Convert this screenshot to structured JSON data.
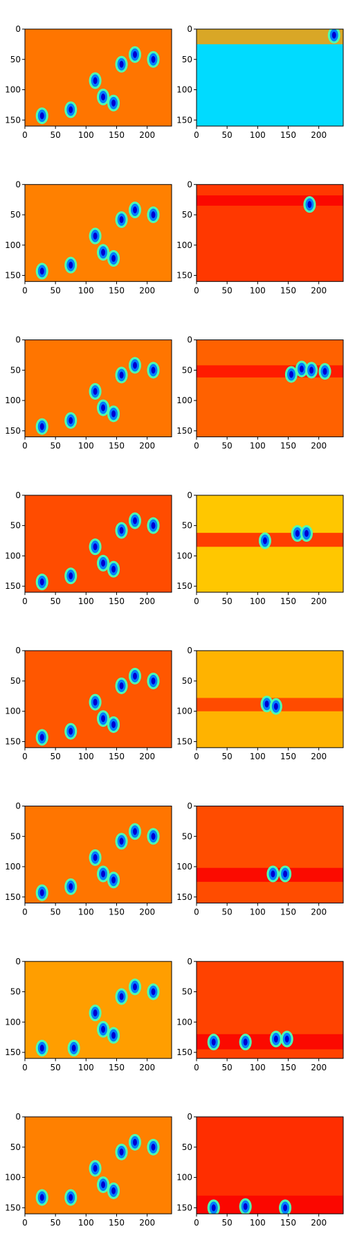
{
  "chart_data": {
    "type": "heatmap",
    "colormap": "jet",
    "layout": {
      "rows": 8,
      "cols": 2
    },
    "xlim": [
      0,
      240
    ],
    "ylim": [
      160,
      0
    ],
    "xticks": [
      0,
      50,
      100,
      150,
      200
    ],
    "yticks": [
      0,
      50,
      100,
      150
    ],
    "grid": false,
    "legend": "none",
    "colors": {
      "warm_background": "#FFA500",
      "deep_blue": "#0000B0",
      "cyan": "#00C8FF",
      "red_orange": "#FF3A00"
    },
    "rows": [
      {
        "left": {
          "background": 0.76,
          "blobs": [
            [
              28,
              143
            ],
            [
              75,
              133
            ],
            [
              115,
              85
            ],
            [
              128,
              112
            ],
            [
              145,
              122
            ],
            [
              158,
              58
            ],
            [
              180,
              42
            ],
            [
              210,
              50
            ]
          ]
        },
        "right": {
          "background": 0.34,
          "band": {
            "y0": 0,
            "y1": 25,
            "value": 0.72
          },
          "blobs": [
            [
              225,
              10
            ]
          ]
        }
      },
      {
        "left": {
          "background": 0.75,
          "blobs": [
            [
              28,
              143
            ],
            [
              75,
              133
            ],
            [
              115,
              85
            ],
            [
              128,
              112
            ],
            [
              145,
              122
            ],
            [
              158,
              58
            ],
            [
              180,
              42
            ],
            [
              210,
              50
            ]
          ]
        },
        "right": {
          "background": 0.82,
          "band": {
            "y0": 18,
            "y1": 35,
            "value": 0.88
          },
          "blobs": [
            [
              185,
              33
            ]
          ]
        }
      },
      {
        "left": {
          "background": 0.76,
          "blobs": [
            [
              28,
              143
            ],
            [
              75,
              133
            ],
            [
              115,
              85
            ],
            [
              128,
              112
            ],
            [
              145,
              122
            ],
            [
              158,
              58
            ],
            [
              180,
              42
            ],
            [
              210,
              50
            ]
          ]
        },
        "right": {
          "background": 0.78,
          "band": {
            "y0": 42,
            "y1": 62,
            "value": 0.86
          },
          "blobs": [
            [
              155,
              57
            ],
            [
              172,
              48
            ],
            [
              188,
              50
            ],
            [
              210,
              52
            ]
          ]
        }
      },
      {
        "left": {
          "background": 0.8,
          "blobs": [
            [
              28,
              143
            ],
            [
              75,
              133
            ],
            [
              115,
              85
            ],
            [
              128,
              112
            ],
            [
              145,
              122
            ],
            [
              158,
              58
            ],
            [
              180,
              42
            ],
            [
              210,
              50
            ]
          ]
        },
        "right": {
          "background": 0.68,
          "band": {
            "y0": 62,
            "y1": 85,
            "value": 0.84
          },
          "blobs": [
            [
              112,
              75
            ],
            [
              165,
              63
            ],
            [
              180,
              63
            ]
          ]
        }
      },
      {
        "left": {
          "background": 0.79,
          "blobs": [
            [
              28,
              143
            ],
            [
              75,
              133
            ],
            [
              115,
              85
            ],
            [
              128,
              112
            ],
            [
              145,
              122
            ],
            [
              158,
              58
            ],
            [
              180,
              42
            ],
            [
              210,
              50
            ]
          ]
        },
        "right": {
          "background": 0.7,
          "band": {
            "y0": 78,
            "y1": 100,
            "value": 0.82
          },
          "blobs": [
            [
              115,
              88
            ],
            [
              130,
              92
            ]
          ]
        }
      },
      {
        "left": {
          "background": 0.76,
          "blobs": [
            [
              28,
              143
            ],
            [
              75,
              133
            ],
            [
              115,
              85
            ],
            [
              128,
              112
            ],
            [
              145,
              122
            ],
            [
              158,
              58
            ],
            [
              180,
              42
            ],
            [
              210,
              50
            ]
          ]
        },
        "right": {
          "background": 0.8,
          "band": {
            "y0": 102,
            "y1": 125,
            "value": 0.88
          },
          "blobs": [
            [
              125,
              112
            ],
            [
              145,
              112
            ]
          ]
        }
      },
      {
        "left": {
          "background": 0.72,
          "blobs": [
            [
              28,
              143
            ],
            [
              80,
              143
            ],
            [
              115,
              85
            ],
            [
              128,
              112
            ],
            [
              145,
              122
            ],
            [
              158,
              58
            ],
            [
              180,
              42
            ],
            [
              210,
              50
            ]
          ]
        },
        "right": {
          "background": 0.81,
          "band": {
            "y0": 120,
            "y1": 145,
            "value": 0.88
          },
          "blobs": [
            [
              28,
              133
            ],
            [
              80,
              133
            ],
            [
              130,
              128
            ],
            [
              148,
              128
            ]
          ]
        }
      },
      {
        "left": {
          "background": 0.75,
          "blobs": [
            [
              28,
              133
            ],
            [
              75,
              133
            ],
            [
              115,
              85
            ],
            [
              128,
              112
            ],
            [
              145,
              122
            ],
            [
              158,
              58
            ],
            [
              180,
              42
            ],
            [
              210,
              50
            ]
          ]
        },
        "right": {
          "background": 0.83,
          "band": {
            "y0": 130,
            "y1": 160,
            "value": 0.88
          },
          "blobs": [
            [
              28,
              150
            ],
            [
              80,
              148
            ],
            [
              145,
              150
            ]
          ]
        }
      }
    ]
  }
}
